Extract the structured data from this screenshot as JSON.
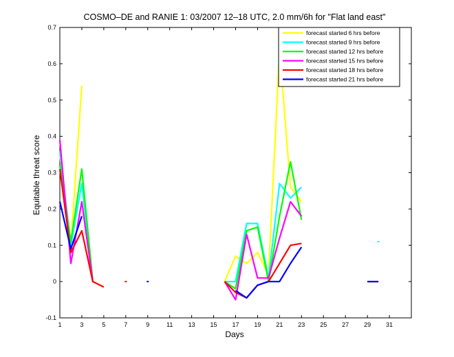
{
  "chart_data": {
    "type": "line",
    "title": "COSMO–DE and RANIE 1: 03/2007 12–18 UTC, 2.0 mm/6h for \"Flat land east\"",
    "xlabel": "Days",
    "ylabel": "Equitable threat score",
    "xlim": [
      1,
      33
    ],
    "ylim": [
      -0.1,
      0.7
    ],
    "xticks": [
      1,
      3,
      5,
      7,
      9,
      11,
      13,
      15,
      17,
      19,
      21,
      23,
      25,
      27,
      29,
      31
    ],
    "yticks": [
      -0.1,
      0,
      0.1,
      0.2,
      0.3,
      0.4,
      0.5,
      0.6,
      0.7
    ],
    "grid": false,
    "legend_position": "top-right",
    "series": [
      {
        "name": "forecast started 6 hrs before",
        "color": "#ffff00",
        "points": [
          [
            1,
            0.35
          ],
          [
            2,
            0.1
          ],
          [
            3,
            0.54
          ],
          [
            3,
            0.54
          ],
          [
            16,
            0.0
          ],
          [
            17,
            0.07
          ],
          [
            18,
            0.05
          ],
          [
            19,
            0.08
          ],
          [
            20,
            0.02
          ],
          [
            21,
            0.64
          ],
          [
            22,
            0.26
          ],
          [
            23,
            0.22
          ]
        ]
      },
      {
        "name": "forecast started 9 hrs before",
        "color": "#00ffff",
        "points": [
          [
            1,
            0.36
          ],
          [
            2,
            0.1
          ],
          [
            3,
            0.27
          ],
          [
            4,
            0.0
          ],
          [
            16,
            0.0
          ],
          [
            17,
            0.0
          ],
          [
            18,
            0.16
          ],
          [
            19,
            0.16
          ],
          [
            20,
            0.01
          ],
          [
            21,
            0.27
          ],
          [
            22,
            0.23
          ],
          [
            23,
            0.26
          ],
          [
            30,
            0.11
          ]
        ]
      },
      {
        "name": "forecast started 12 hrs before",
        "color": "#00ff00",
        "points": [
          [
            1,
            0.32
          ],
          [
            2,
            0.11
          ],
          [
            3,
            0.31
          ],
          [
            4,
            0.0
          ],
          [
            16,
            0.0
          ],
          [
            17,
            -0.02
          ],
          [
            18,
            0.14
          ],
          [
            19,
            0.15
          ],
          [
            20,
            0.0
          ],
          [
            21,
            0.18
          ],
          [
            22,
            0.33
          ],
          [
            23,
            0.17
          ]
        ]
      },
      {
        "name": "forecast started 15 hrs before",
        "color": "#ff00ff",
        "points": [
          [
            1,
            0.39
          ],
          [
            2,
            0.05
          ],
          [
            3,
            0.22
          ],
          [
            4,
            0.0
          ],
          [
            16,
            0.0
          ],
          [
            17,
            -0.05
          ],
          [
            18,
            0.13
          ],
          [
            19,
            0.01
          ],
          [
            20,
            0.01
          ],
          [
            21,
            0.12
          ],
          [
            22,
            0.22
          ],
          [
            23,
            0.18
          ]
        ]
      },
      {
        "name": "forecast started 18 hrs before",
        "color": "#ff0000",
        "points": [
          [
            1,
            0.31
          ],
          [
            2,
            0.08
          ],
          [
            3,
            0.14
          ],
          [
            4,
            0.0
          ],
          [
            5,
            -0.015
          ],
          [
            7,
            0.0
          ],
          [
            16,
            0.0
          ],
          [
            17,
            -0.03
          ],
          [
            18,
            -0.045
          ],
          [
            19,
            -0.01
          ],
          [
            20,
            0.0
          ],
          [
            21,
            0.05
          ],
          [
            22,
            0.1
          ],
          [
            23,
            0.105
          ],
          [
            29,
            0.0
          ],
          [
            30,
            0.0
          ]
        ]
      },
      {
        "name": "forecast started 21 hrs before",
        "color": "#0000ff",
        "points": [
          [
            1,
            0.22
          ],
          [
            2,
            0.09
          ],
          [
            3,
            0.18
          ],
          [
            9,
            0.0
          ],
          [
            17,
            -0.025
          ],
          [
            18,
            -0.045
          ],
          [
            19,
            -0.01
          ],
          [
            20,
            0.0
          ],
          [
            21,
            0.0
          ],
          [
            22,
            0.05
          ],
          [
            23,
            0.095
          ],
          [
            29,
            0.0
          ],
          [
            30,
            0.0
          ]
        ]
      }
    ],
    "segments_breaks": {
      "forecast started 6 hrs before": [
        3
      ],
      "forecast started 9 hrs before": [
        3,
        11
      ],
      "forecast started 12 hrs before": [
        3
      ],
      "forecast started 15 hrs before": [
        3
      ],
      "forecast started 18 hrs before": [
        4,
        5,
        13
      ],
      "forecast started 21 hrs before": [
        2,
        3,
        10
      ]
    }
  }
}
